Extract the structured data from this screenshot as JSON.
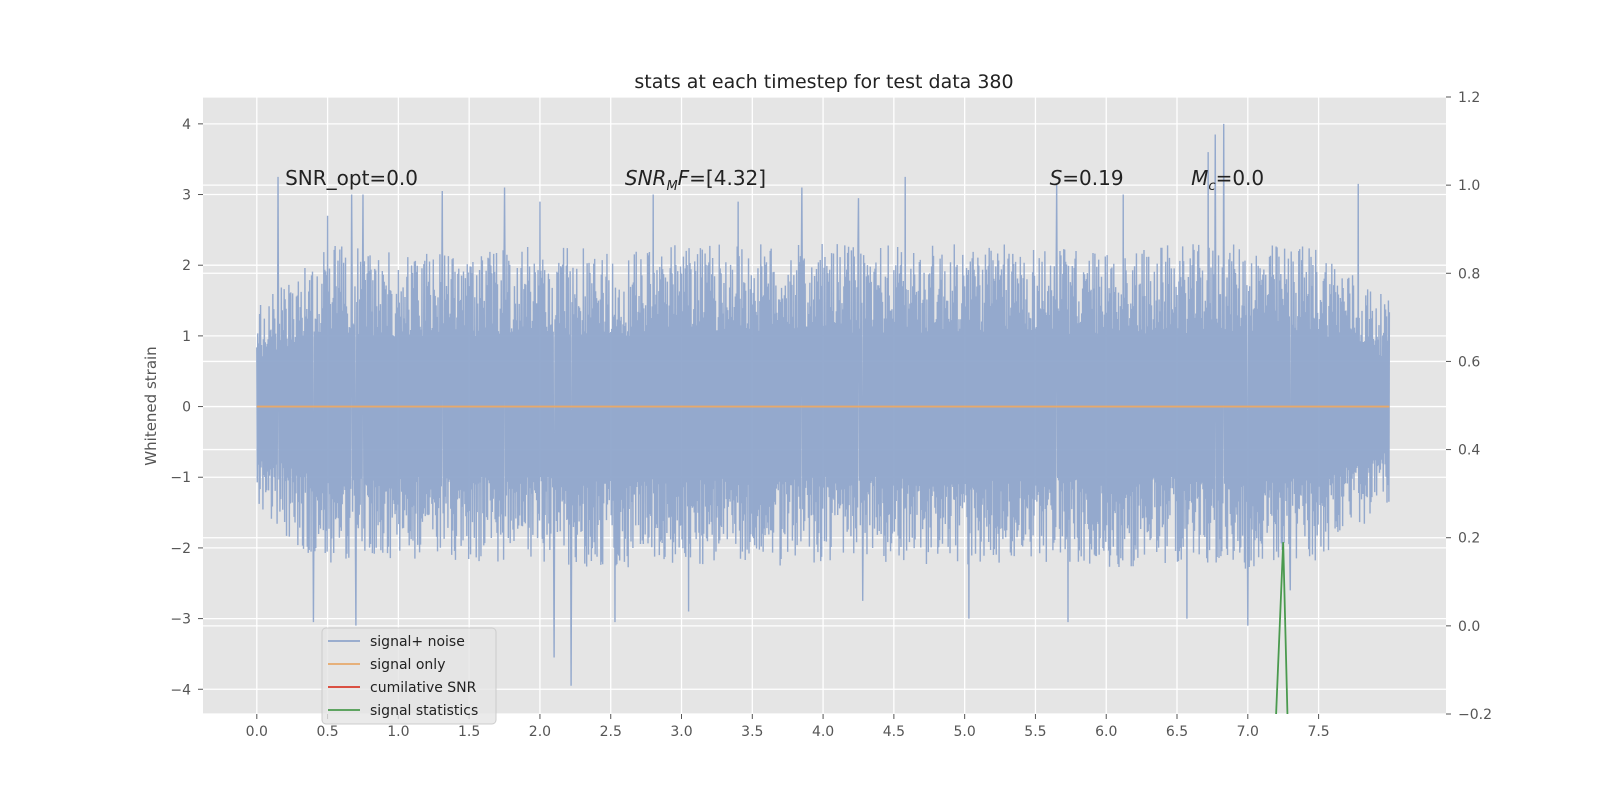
{
  "chart_data": {
    "type": "line",
    "title": "stats at each timestep for test data 380",
    "ylabel": "Whitened strain",
    "xlim": [
      -0.38,
      8.4
    ],
    "ylim": [
      -4.35,
      4.38
    ],
    "y2lim": [
      -0.2,
      1.2
    ],
    "x_ticks": [
      "0.0",
      "0.5",
      "1.0",
      "1.5",
      "2.0",
      "2.5",
      "3.0",
      "3.5",
      "4.0",
      "4.5",
      "5.0",
      "5.5",
      "6.0",
      "6.5",
      "7.0",
      "7.5"
    ],
    "y_ticks": [
      "4",
      "3",
      "2",
      "1",
      "0",
      "−1",
      "−2",
      "−3",
      "−4"
    ],
    "y2_ticks": [
      "1.2",
      "1.0",
      "0.8",
      "0.6",
      "0.4",
      "0.2",
      "0.0",
      "−0.2"
    ],
    "grid": true,
    "legend_position": "lower-left",
    "series": [
      {
        "name": "signal+ noise",
        "color": "#8fa5cb",
        "axis": "left",
        "x_range": [
          0.0,
          8.0
        ],
        "envelope": {
          "x": [
            0.0,
            0.5,
            1.0,
            1.5,
            2.0,
            2.5,
            3.0,
            3.5,
            4.0,
            4.5,
            5.0,
            5.5,
            6.0,
            6.5,
            7.0,
            7.5,
            8.0
          ],
          "upper": [
            1.4,
            2.3,
            2.2,
            2.2,
            2.3,
            2.2,
            2.3,
            2.3,
            2.3,
            2.3,
            2.3,
            2.3,
            2.2,
            2.3,
            2.3,
            2.3,
            1.5
          ],
          "lower": [
            -1.5,
            -2.3,
            -2.2,
            -2.2,
            -2.2,
            -2.3,
            -2.2,
            -2.3,
            -2.2,
            -2.2,
            -2.3,
            -2.2,
            -2.3,
            -2.2,
            -2.3,
            -2.2,
            -1.4
          ]
        },
        "peaks": [
          [
            0.15,
            3.25
          ],
          [
            0.5,
            2.7
          ],
          [
            0.67,
            3.0
          ],
          [
            0.75,
            3.0
          ],
          [
            1.31,
            3.05
          ],
          [
            1.75,
            3.1
          ],
          [
            2.0,
            2.9
          ],
          [
            2.8,
            3.0
          ],
          [
            3.4,
            2.9
          ],
          [
            3.85,
            3.1
          ],
          [
            4.25,
            2.95
          ],
          [
            4.58,
            3.25
          ],
          [
            5.65,
            3.15
          ],
          [
            6.12,
            3.0
          ],
          [
            6.57,
            2.95
          ],
          [
            6.72,
            3.6
          ],
          [
            6.77,
            3.85
          ],
          [
            6.83,
            4.0
          ],
          [
            7.78,
            3.15
          ]
        ],
        "troughs": [
          [
            0.4,
            -3.05
          ],
          [
            0.7,
            -3.1
          ],
          [
            2.1,
            -3.55
          ],
          [
            2.22,
            -3.95
          ],
          [
            2.53,
            -3.05
          ],
          [
            3.05,
            -2.9
          ],
          [
            4.28,
            -2.75
          ],
          [
            5.03,
            -3.0
          ],
          [
            5.73,
            -3.05
          ],
          [
            6.57,
            -3.0
          ],
          [
            7.0,
            -3.1
          ],
          [
            7.3,
            -2.6
          ]
        ]
      },
      {
        "name": "signal only",
        "color": "#e6a96b",
        "axis": "left",
        "x": [
          0.0,
          8.0
        ],
        "y": [
          0.0,
          0.0
        ]
      },
      {
        "name": "cumilative SNR",
        "color": "#d83a2a",
        "axis": "left",
        "x": [],
        "y": []
      },
      {
        "name": "signal statistics",
        "color": "#4a9a4e",
        "axis": "right",
        "x": [
          7.2,
          7.25,
          7.28
        ],
        "y": [
          -0.2,
          0.19,
          -0.2
        ]
      }
    ],
    "annotations": [
      {
        "text": "SNR_opt=0.0",
        "x": 0.2,
        "y": 3.25,
        "style": "plain"
      },
      {
        "text": "$SNR_MF$=[4.32]",
        "base": "SNR",
        "sub": "M",
        "after": "F=[4.32]",
        "x": 2.6,
        "y": 3.25,
        "style": "math"
      },
      {
        "text": "$S$=0.19",
        "base": "S",
        "after": "=0.19",
        "x": 5.6,
        "y": 3.25,
        "style": "math"
      },
      {
        "text": "$M_c$=0.0",
        "base": "M",
        "sub": "c",
        "after": "=0.0",
        "x": 6.6,
        "y": 3.25,
        "style": "math"
      }
    ]
  }
}
